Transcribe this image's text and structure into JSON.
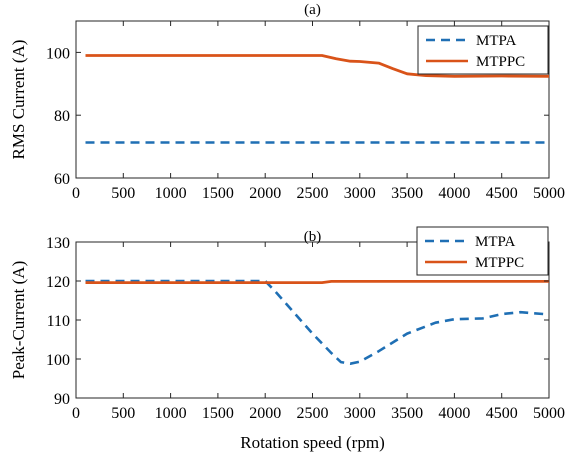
{
  "chart_data": [
    {
      "type": "line",
      "title": "(a)",
      "xlabel": "",
      "ylabel": "RMS Current (A)",
      "xlim": [
        0,
        5000
      ],
      "ylim": [
        60,
        110
      ],
      "xticks": [
        0,
        500,
        1000,
        1500,
        2000,
        2500,
        3000,
        3500,
        4000,
        4500,
        5000
      ],
      "yticks": [
        60,
        80,
        100
      ],
      "grid": false,
      "legend_position": "top-right",
      "series": [
        {
          "name": "MTPA",
          "color": "#1f6fb4",
          "style": "dashed",
          "x": [
            100,
            5000
          ],
          "y": [
            71.3,
            71.3
          ]
        },
        {
          "name": "MTPPC",
          "color": "#d95319",
          "style": "solid",
          "x": [
            100,
            2600,
            2750,
            2900,
            3000,
            3200,
            3350,
            3500,
            3700,
            4000,
            4500,
            5000
          ],
          "y": [
            99.0,
            99.0,
            98.0,
            97.2,
            97.1,
            96.6,
            94.8,
            93.2,
            92.6,
            92.4,
            92.5,
            92.4
          ]
        }
      ]
    },
    {
      "type": "line",
      "title": "(b)",
      "xlabel": "Rotation speed (rpm)",
      "ylabel": "Peak-Current (A)",
      "xlim": [
        0,
        5000
      ],
      "ylim": [
        90,
        130
      ],
      "xticks": [
        0,
        500,
        1000,
        1500,
        2000,
        2500,
        3000,
        3500,
        4000,
        4500,
        5000
      ],
      "yticks": [
        90,
        100,
        110,
        120,
        130
      ],
      "grid": false,
      "legend_position": "top-right",
      "series": [
        {
          "name": "MTPA",
          "color": "#1f6fb4",
          "style": "dashed",
          "x": [
            100,
            2000,
            2100,
            2300,
            2500,
            2700,
            2800,
            2900,
            3000,
            3200,
            3500,
            3800,
            4000,
            4300,
            4500,
            4700,
            4950
          ],
          "y": [
            120.0,
            120.0,
            117.5,
            112.0,
            106.5,
            101.5,
            99.2,
            98.8,
            99.3,
            102.0,
            106.5,
            109.3,
            110.2,
            110.4,
            111.5,
            112.0,
            111.5
          ]
        },
        {
          "name": "MTPPC",
          "color": "#d95319",
          "style": "solid",
          "x": [
            100,
            2600,
            2700,
            5000
          ],
          "y": [
            119.6,
            119.6,
            119.9,
            119.9
          ]
        }
      ]
    }
  ]
}
